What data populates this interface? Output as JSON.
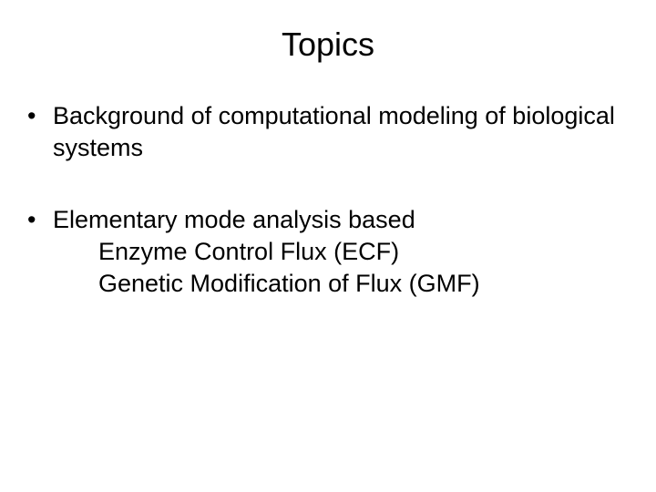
{
  "title": "Topics",
  "bullets": [
    {
      "main": "Background of computational modeling of biological systems",
      "subs": []
    },
    {
      "main": "Elementary mode analysis based",
      "subs": [
        "Enzyme Control Flux (ECF)",
        "Genetic Modification of Flux (GMF)"
      ]
    }
  ],
  "styling": {
    "background_color": "#ffffff",
    "text_color": "#000000",
    "title_fontsize": 36,
    "body_fontsize": 27,
    "font_family": "Arial"
  }
}
